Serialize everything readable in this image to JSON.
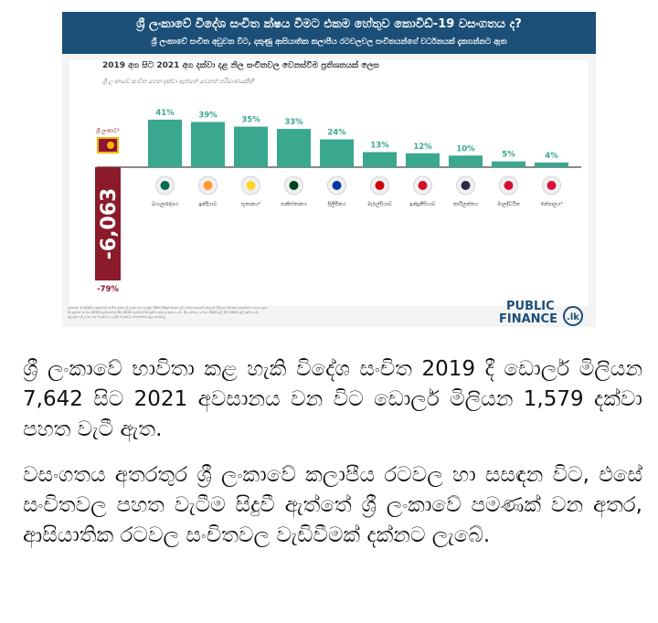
{
  "infographic": {
    "title": "ශ්‍රී ලංකාවේ විදේශ සංචිත ක්ෂය වීමට එකම හේතුව කොවිඩ්-19 වසංගතය ද?",
    "subtitle": "ශ්‍රී ලංකාවේ සංචිත අඩුවන විට, දකුණු ආසියාතික කලාපීය රටවලවල සංචිතයන්ගේ වර්ධනයක් දැකගන්නට ඇත",
    "footnotes": [
      "සටහන්: 1) 2021 දෙසැම්බර් සංචිත දත්ත ශ්‍රී ලංකා මහ බැංකුව විසින් නිකුත් කරන ලදි. සංචිත අගයන් ඩොලර් මිලියන 10 කට ආසන්නව වටයා ඇත.",
      "2) භූතාන සංඛ්‍යා 2019 සැප්තැම්බර් සිට 2021 සැප්තැම්බර් දක්වා කාලය සඳහා වේ. 3) නේපාල සංඛ්‍යා 2019 ජූලි සිට 2021 ජූලි දක්වා වේ.",
      "මූලාශ්‍රය: ශ්‍රී ලංකා මහ බැංකුව | ලෝක බැංකුව | ජාත්‍යන්තර මූල්‍ය අරමුදල"
    ],
    "logo": {
      "line1": "PUBLIC",
      "line2": "FINANCE",
      "badge": ".lk"
    }
  },
  "chart_data": {
    "type": "bar",
    "title": "2019 අග සිට 2021 අග දක්වා දළ නිල සංචිතවල වෙනස්වීම ප්‍රතිශතයක් ලෙස",
    "subtitle": "ශ්‍රී ලංකාවේ සංචිත ගෙන දක්වා ඇත්තේ වෙනත් පරිමාණයකිනි",
    "categories": [
      "ශ්‍රී ලංකාව¹",
      "බංගලාදේශය",
      "ඉන්දියාව",
      "භූතානය²",
      "පාකිස්තානය",
      "පිලිපීනය",
      "මැලේසියාව",
      "ඉන්දුනීසියාව",
      "තායිලන්තය",
      "මාලදිවයින",
      "නේපාලය³"
    ],
    "values": [
      -79,
      41,
      39,
      35,
      33,
      24,
      13,
      12,
      10,
      5,
      4
    ],
    "data_labels": [
      "-79%",
      "41%",
      "39%",
      "35%",
      "33%",
      "24%",
      "13%",
      "12%",
      "10%",
      "5%",
      "4%"
    ],
    "highlight_label": "-6,063",
    "colors": {
      "positive": "#3aa78f",
      "negative": "#8b1a2b",
      "label": "#3aa78f"
    }
  },
  "article": {
    "paragraph1": "ශ්‍රී ලංකාවේ භාවිතා කළ හැකි විදේශ සංචිත 2019 දී ඩොලර් මිලියන 7,642 සිට 2021 අවසානය වන විට ඩොලර් මිලියන 1,579 දක්වා පහත වැටී ඇත.",
    "paragraph2": "වසංගතය අතරතුර ශ්‍රී ලංකාවේ කලාපීය රටවල හා සසඳන විට, එසේ සංචිතවල පහත වැටීම සිදුවී ඇත්තේ ශ්‍රී ලංකාවේ පමණක් වන අතර, ආසියාතික රටවල සංචිතවල වැඩිවීමක් දක්නට ලැබේ."
  }
}
